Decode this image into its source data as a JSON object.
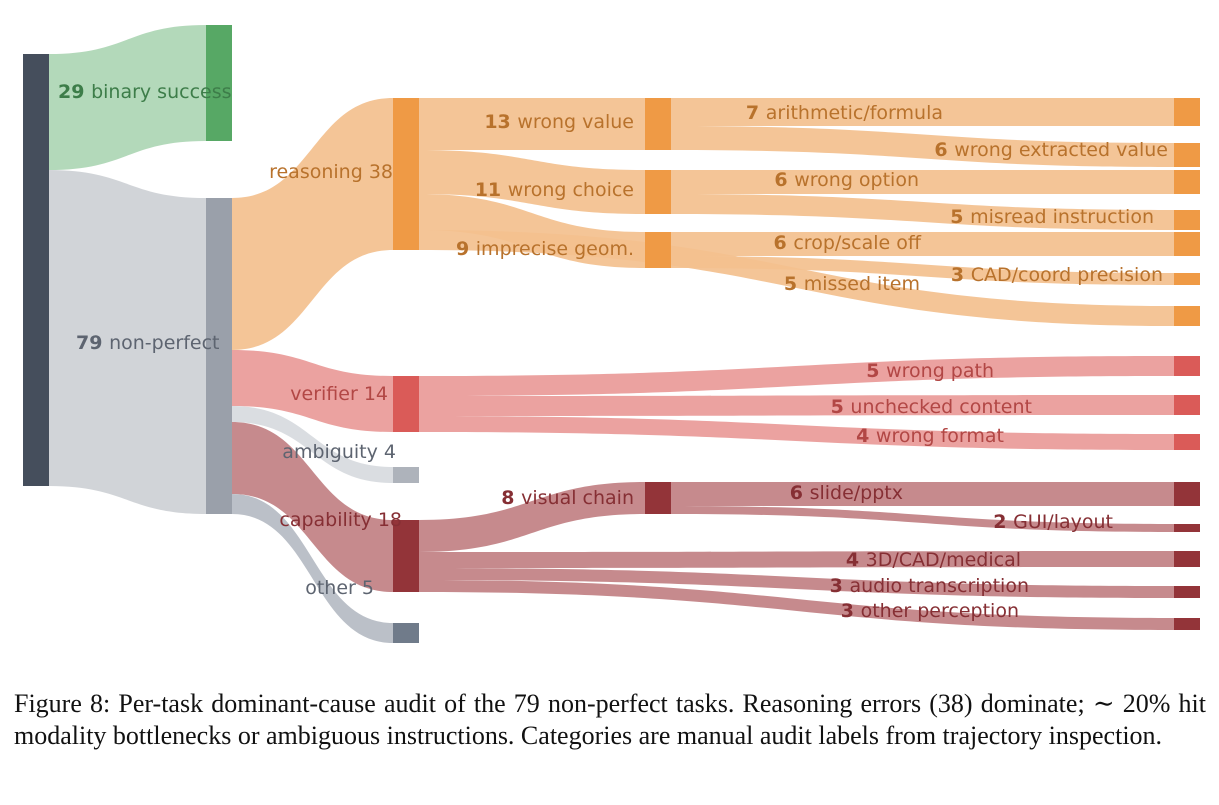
{
  "caption": "Figure 8: Per-task dominant-cause audit of the 79 non-perfect tasks. Reasoning errors (38) dominate; ∼ 20% hit modality bottlenecks or ambiguous instructions. Categories are manual audit labels from trajectory inspection.",
  "palette": {
    "root": "#454e5c",
    "success": "#57a865",
    "success_link": "#acd6b4",
    "nonperfect": "#9aa0aa",
    "nonperfect_link": "#cdd0d5",
    "reasoning": "#ef9a45",
    "reasoning_link": "#f3c08e",
    "reasoning_text": "#b8722c",
    "verifier": "#da5b58",
    "verifier_link": "#e99a98",
    "verifier_text": "#b24745",
    "ambiguity": "#aeb3bb",
    "ambiguity_link": "#d7dade",
    "neutral_text": "#5d6470",
    "capability": "#933439",
    "capability_link": "#c18083",
    "capability_text": "#862f34",
    "other": "#707b8a",
    "other_link": "#b5bbc3"
  },
  "nodes": [
    {
      "id": "root",
      "value": 108
    },
    {
      "id": "success",
      "value": 29,
      "num": "29",
      "label": "binary success"
    },
    {
      "id": "nonperfect",
      "value": 79,
      "num": "79",
      "label": "non-perfect"
    },
    {
      "id": "reasoning",
      "value": 38,
      "num": "38",
      "label": "reasoning"
    },
    {
      "id": "verifier",
      "value": 14,
      "num": "14",
      "label": "verifier"
    },
    {
      "id": "ambiguity",
      "value": 4,
      "num": "4",
      "label": "ambiguity"
    },
    {
      "id": "capability",
      "value": 18,
      "num": "18",
      "label": "capability"
    },
    {
      "id": "other",
      "value": 5,
      "num": "5",
      "label": "other"
    },
    {
      "id": "wrong_value",
      "value": 13,
      "num": "13",
      "label": "wrong value"
    },
    {
      "id": "wrong_choice",
      "value": 11,
      "num": "11",
      "label": "wrong choice"
    },
    {
      "id": "imprecise_geom",
      "value": 9,
      "num": "9",
      "label": "imprecise geom."
    },
    {
      "id": "missed_item",
      "value": 5,
      "num": "5",
      "label": "missed item"
    },
    {
      "id": "arithmetic",
      "value": 7,
      "num": "7",
      "label": "arithmetic/formula"
    },
    {
      "id": "wrong_extracted",
      "value": 6,
      "num": "6",
      "label": "wrong extracted value"
    },
    {
      "id": "wrong_option",
      "value": 6,
      "num": "6",
      "label": "wrong option"
    },
    {
      "id": "misread",
      "value": 5,
      "num": "5",
      "label": "misread instruction"
    },
    {
      "id": "crop_scale",
      "value": 6,
      "num": "6",
      "label": "crop/scale off"
    },
    {
      "id": "cad_coord",
      "value": 3,
      "num": "3",
      "label": "CAD/coord precision"
    },
    {
      "id": "wrong_path",
      "value": 5,
      "num": "5",
      "label": "wrong path"
    },
    {
      "id": "unchecked",
      "value": 5,
      "num": "5",
      "label": "unchecked content"
    },
    {
      "id": "wrong_format",
      "value": 4,
      "num": "4",
      "label": "wrong format"
    },
    {
      "id": "visual_chain",
      "value": 8,
      "num": "8",
      "label": "visual chain"
    },
    {
      "id": "slide_pptx",
      "value": 6,
      "num": "6",
      "label": "slide/pptx"
    },
    {
      "id": "gui_layout",
      "value": 2,
      "num": "2",
      "label": "GUI/layout"
    },
    {
      "id": "cad_medical",
      "value": 4,
      "num": "4",
      "label": "3D/CAD/medical"
    },
    {
      "id": "audio",
      "value": 3,
      "num": "3",
      "label": "audio transcription"
    },
    {
      "id": "other_perception",
      "value": 3,
      "num": "3",
      "label": "other perception"
    }
  ],
  "links": [
    {
      "source": "root",
      "target": "success",
      "value": 29
    },
    {
      "source": "root",
      "target": "nonperfect",
      "value": 79
    },
    {
      "source": "nonperfect",
      "target": "reasoning",
      "value": 38
    },
    {
      "source": "nonperfect",
      "target": "verifier",
      "value": 14
    },
    {
      "source": "nonperfect",
      "target": "ambiguity",
      "value": 4
    },
    {
      "source": "nonperfect",
      "target": "capability",
      "value": 18
    },
    {
      "source": "nonperfect",
      "target": "other",
      "value": 5
    },
    {
      "source": "reasoning",
      "target": "wrong_value",
      "value": 13
    },
    {
      "source": "reasoning",
      "target": "wrong_choice",
      "value": 11
    },
    {
      "source": "reasoning",
      "target": "imprecise_geom",
      "value": 9
    },
    {
      "source": "reasoning",
      "target": "missed_item",
      "value": 5
    },
    {
      "source": "wrong_value",
      "target": "arithmetic",
      "value": 7
    },
    {
      "source": "wrong_value",
      "target": "wrong_extracted",
      "value": 6
    },
    {
      "source": "wrong_choice",
      "target": "wrong_option",
      "value": 6
    },
    {
      "source": "wrong_choice",
      "target": "misread",
      "value": 5
    },
    {
      "source": "imprecise_geom",
      "target": "crop_scale",
      "value": 6
    },
    {
      "source": "imprecise_geom",
      "target": "cad_coord",
      "value": 3
    },
    {
      "source": "verifier",
      "target": "wrong_path",
      "value": 5
    },
    {
      "source": "verifier",
      "target": "unchecked",
      "value": 5
    },
    {
      "source": "verifier",
      "target": "wrong_format",
      "value": 4
    },
    {
      "source": "capability",
      "target": "visual_chain",
      "value": 8
    },
    {
      "source": "capability",
      "target": "cad_medical",
      "value": 4
    },
    {
      "source": "capability",
      "target": "audio",
      "value": 3
    },
    {
      "source": "capability",
      "target": "other_perception",
      "value": 3
    },
    {
      "source": "visual_chain",
      "target": "slide_pptx",
      "value": 6
    },
    {
      "source": "visual_chain",
      "target": "gui_layout",
      "value": 2
    }
  ]
}
